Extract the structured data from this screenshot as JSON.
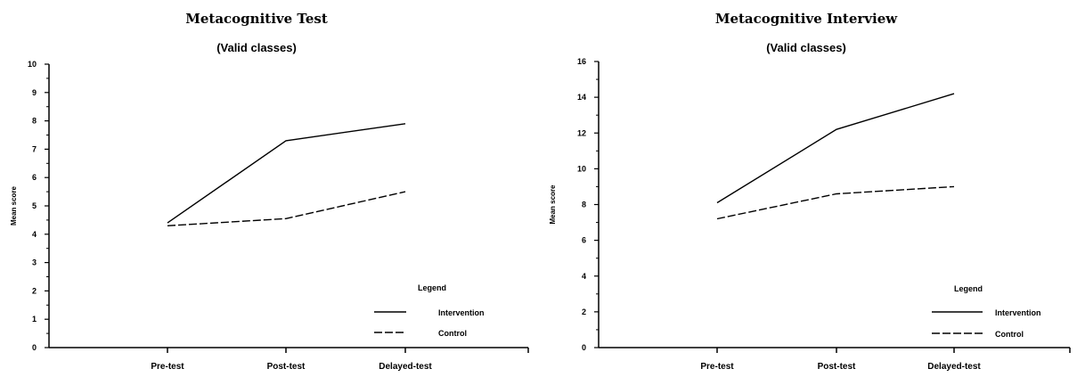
{
  "chart_data": [
    {
      "type": "line",
      "title": "Metacognitive Test",
      "subtitle": "(Valid classes)",
      "ylabel": "Mean score",
      "xlabel": "",
      "categories": [
        "Pre-test",
        "Post-test",
        "Delayed-test"
      ],
      "ylim": [
        0,
        10
      ],
      "yticks": [
        "0",
        "1",
        "2",
        "3",
        "4",
        "5",
        "6",
        "7",
        "8",
        "9",
        "10"
      ],
      "series": [
        {
          "name": "Intervention",
          "values": [
            4.4,
            7.3,
            7.9
          ],
          "style": "solid"
        },
        {
          "name": "Control",
          "values": [
            4.3,
            4.55,
            5.5
          ],
          "style": "dashed"
        }
      ],
      "legend": {
        "title": "Legend",
        "position": "bottom-right"
      },
      "grid": false
    },
    {
      "type": "line",
      "title": "Metacognitive Interview",
      "subtitle": "(Valid classes)",
      "ylabel": "Mean score",
      "xlabel": "",
      "categories": [
        "Pre-test",
        "Post-test",
        "Delayed-test"
      ],
      "ylim": [
        0,
        16
      ],
      "yticks": [
        "0",
        "2",
        "4",
        "6",
        "8",
        "10",
        "12",
        "14",
        "16"
      ],
      "series": [
        {
          "name": "Intervention",
          "values": [
            8.1,
            12.2,
            14.2
          ],
          "style": "solid"
        },
        {
          "name": "Control",
          "values": [
            7.2,
            8.6,
            9.0
          ],
          "style": "dashed"
        }
      ],
      "legend": {
        "title": "Legend",
        "position": "bottom-right"
      },
      "grid": false
    }
  ]
}
